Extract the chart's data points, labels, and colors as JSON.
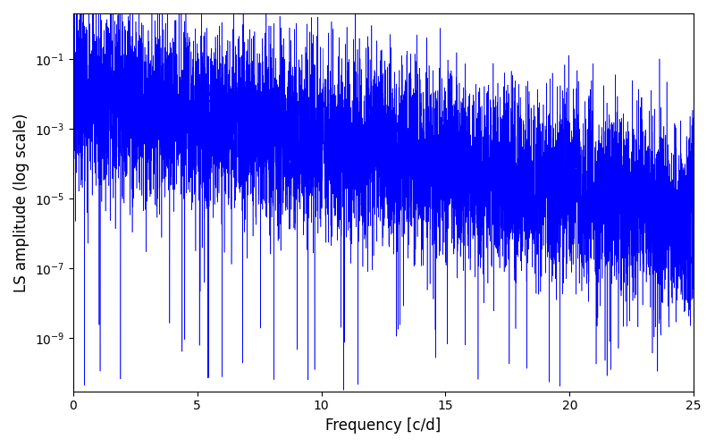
{
  "title": "",
  "xlabel": "Frequency [c/d]",
  "ylabel": "LS amplitude (log scale)",
  "xlim": [
    0,
    25
  ],
  "ylim": [
    3e-11,
    2.0
  ],
  "line_color": "#0000ff",
  "line_width": 0.4,
  "yscale": "log",
  "yticks": [
    1e-09,
    1e-07,
    1e-05,
    0.001,
    0.1
  ],
  "xticks": [
    0,
    5,
    10,
    15,
    20,
    25
  ],
  "figsize": [
    8.0,
    5.0
  ],
  "dpi": 100,
  "seed": 123,
  "n_points": 8000,
  "freq_max": 25.0
}
